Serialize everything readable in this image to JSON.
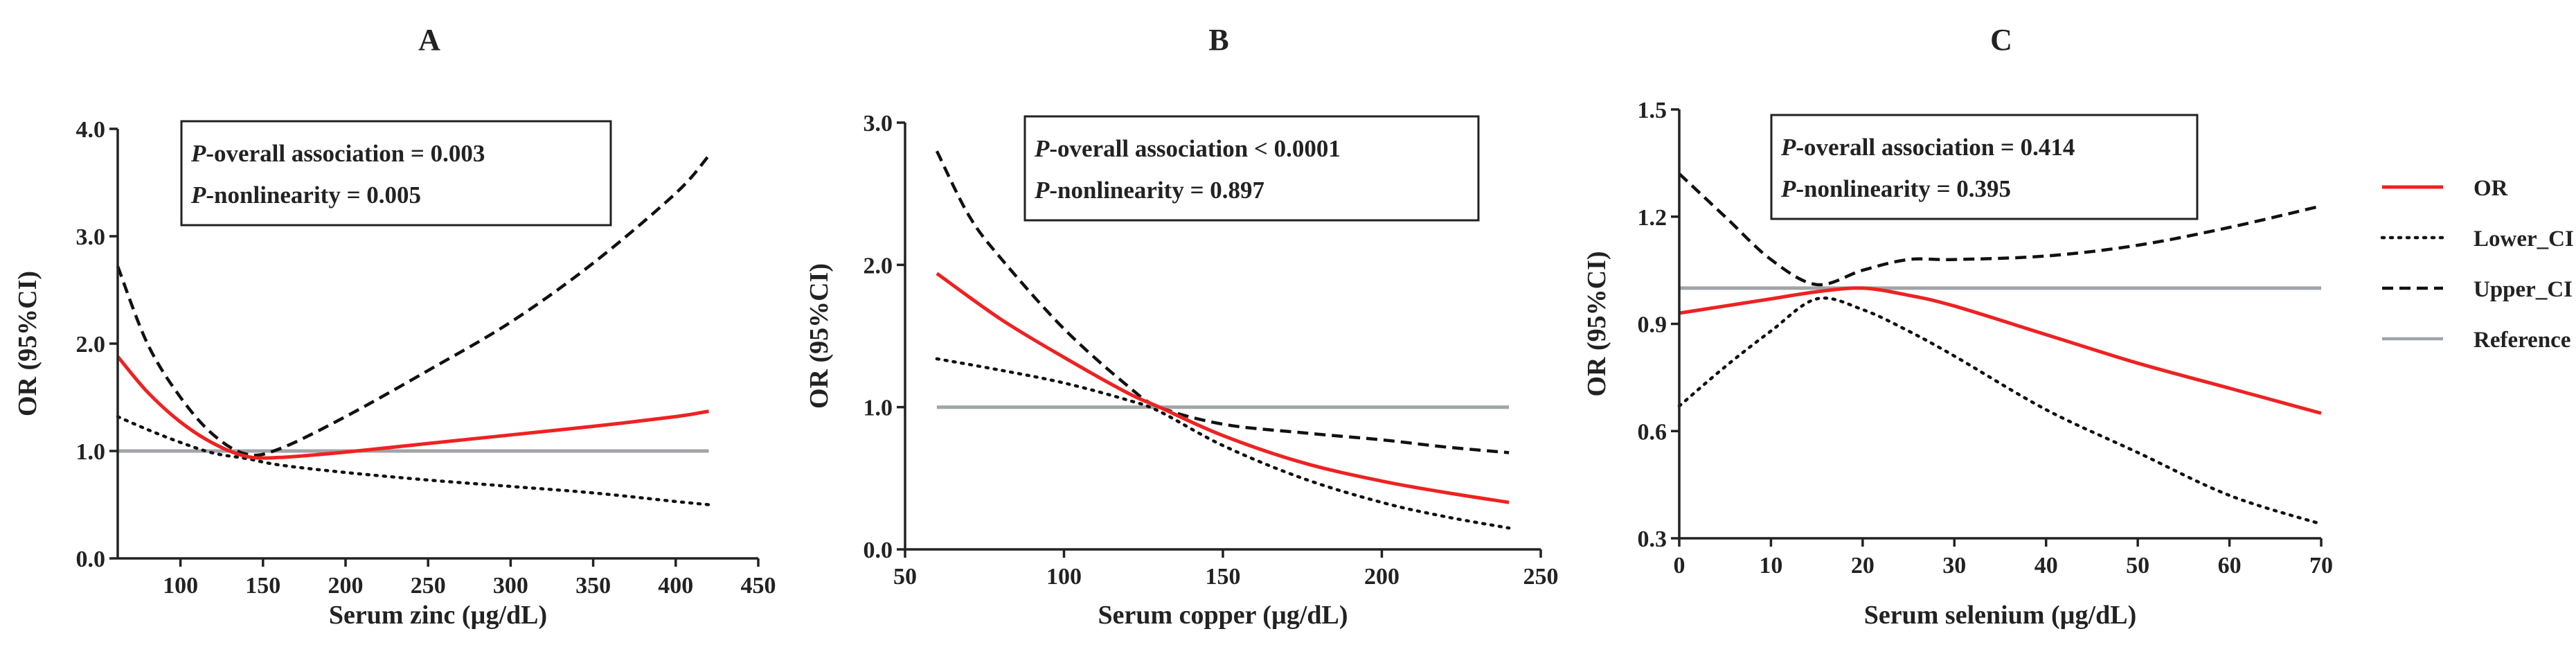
{
  "colors": {
    "or": "#ee2222",
    "ci": "#111111",
    "reference": "#a0a4a8",
    "axis": "#222222",
    "text": "#222222"
  },
  "legend": {
    "entries": [
      {
        "label": "OR",
        "series": "OR"
      },
      {
        "label": "Lower_CI",
        "series": "Lower_CI"
      },
      {
        "label": "Upper_CI",
        "series": "Upper_CI"
      },
      {
        "label": "Reference",
        "series": "Reference"
      }
    ]
  },
  "chart_data": [
    {
      "type": "line",
      "panel": "A",
      "xlabel": "Serum zinc (µg/dL)",
      "ylabel": "OR (95%CI)",
      "xlim": [
        62,
        450
      ],
      "ylim": [
        0,
        4.0
      ],
      "xticks": [
        100,
        150,
        200,
        250,
        300,
        350,
        400,
        450
      ],
      "xtick_labels": [
        "100",
        "150",
        "200",
        "250",
        "300",
        "350",
        "400",
        "450"
      ],
      "yticks": [
        0,
        1,
        2,
        3,
        4
      ],
      "ytick_labels": [
        "0.0",
        "1.0",
        "2.0",
        "3.0",
        "4.0"
      ],
      "annotation": {
        "line1_prefix": "P",
        "line1_rest": "-overall association = 0.003",
        "line2_prefix": "P",
        "line2_rest": "-nonlinearity = 0.005"
      },
      "series": [
        {
          "name": "OR",
          "style": "solid",
          "x": [
            62,
            80,
            100,
            120,
            140,
            160,
            200,
            250,
            300,
            350,
            400,
            420
          ],
          "y": [
            1.88,
            1.55,
            1.27,
            1.07,
            0.95,
            0.94,
            0.99,
            1.07,
            1.15,
            1.23,
            1.32,
            1.37
          ]
        },
        {
          "name": "Lower_CI",
          "style": "dotted",
          "x": [
            62,
            80,
            100,
            120,
            140,
            160,
            200,
            250,
            300,
            350,
            400,
            420
          ],
          "y": [
            1.32,
            1.2,
            1.08,
            0.98,
            0.93,
            0.87,
            0.8,
            0.73,
            0.67,
            0.61,
            0.53,
            0.5
          ]
        },
        {
          "name": "Upper_CI",
          "style": "dashed",
          "x": [
            62,
            80,
            100,
            120,
            140,
            160,
            200,
            250,
            300,
            350,
            400,
            420
          ],
          "y": [
            2.72,
            2.0,
            1.5,
            1.15,
            0.97,
            1.02,
            1.32,
            1.75,
            2.2,
            2.75,
            3.4,
            3.75
          ]
        },
        {
          "name": "Reference",
          "style": "solid",
          "x": [
            62,
            420
          ],
          "y": [
            1.0,
            1.0
          ]
        }
      ]
    },
    {
      "type": "line",
      "panel": "B",
      "xlabel": "Serum copper (µg/dL)",
      "ylabel": "OR (95%CI)",
      "xlim": [
        50,
        250
      ],
      "ylim": [
        0,
        3.0
      ],
      "xticks": [
        50,
        100,
        150,
        200,
        250
      ],
      "xtick_labels": [
        "50",
        "100",
        "150",
        "200",
        "250"
      ],
      "yticks": [
        0,
        1,
        2,
        3
      ],
      "ytick_labels": [
        "0.0",
        "1.0",
        "2.0",
        "3.0"
      ],
      "annotation": {
        "line1_prefix": "P",
        "line1_rest": "-overall association < 0.0001",
        "line2_prefix": "P",
        "line2_rest": "-nonlinearity = 0.897"
      },
      "series": [
        {
          "name": "OR",
          "style": "solid",
          "x": [
            60,
            80,
            100,
            120,
            130,
            150,
            175,
            200,
            220,
            240
          ],
          "y": [
            1.94,
            1.62,
            1.35,
            1.1,
            1.0,
            0.8,
            0.61,
            0.48,
            0.4,
            0.33
          ]
        },
        {
          "name": "Lower_CI",
          "style": "dotted",
          "x": [
            60,
            80,
            100,
            120,
            130,
            150,
            175,
            200,
            220,
            240
          ],
          "y": [
            1.34,
            1.26,
            1.17,
            1.05,
            0.97,
            0.73,
            0.5,
            0.33,
            0.23,
            0.15
          ]
        },
        {
          "name": "Upper_CI",
          "style": "dashed",
          "x": [
            60,
            70,
            80,
            100,
            120,
            130,
            150,
            175,
            200,
            220,
            240
          ],
          "y": [
            2.8,
            2.35,
            2.05,
            1.55,
            1.15,
            1.0,
            0.88,
            0.82,
            0.77,
            0.72,
            0.68
          ]
        },
        {
          "name": "Reference",
          "style": "solid",
          "x": [
            60,
            240
          ],
          "y": [
            1.0,
            1.0
          ]
        }
      ]
    },
    {
      "type": "line",
      "panel": "C",
      "xlabel": "Serum selenium (µg/dL)",
      "ylabel": "OR (95%CI)",
      "xlim": [
        0,
        70
      ],
      "ylim": [
        0.3,
        1.5
      ],
      "xticks": [
        0,
        10,
        20,
        30,
        40,
        50,
        60,
        70
      ],
      "xtick_labels": [
        "0",
        "10",
        "20",
        "30",
        "40",
        "50",
        "60",
        "70"
      ],
      "yticks": [
        0.3,
        0.6,
        0.9,
        1.2,
        1.5
      ],
      "ytick_labels": [
        "0.3",
        "0.6",
        "0.9",
        "1.2",
        "1.5"
      ],
      "annotation": {
        "line1_prefix": "P",
        "line1_rest": "-overall association = 0.414",
        "line2_prefix": "P",
        "line2_rest": "-nonlinearity = 0.395"
      },
      "series": [
        {
          "name": "OR",
          "style": "solid",
          "x": [
            0,
            5,
            10,
            15,
            20,
            25,
            30,
            40,
            50,
            60,
            70
          ],
          "y": [
            0.93,
            0.95,
            0.97,
            0.99,
            1.0,
            0.98,
            0.95,
            0.87,
            0.79,
            0.72,
            0.65
          ]
        },
        {
          "name": "Lower_CI",
          "style": "dotted",
          "x": [
            0,
            5,
            10,
            15,
            20,
            25,
            30,
            40,
            50,
            60,
            70
          ],
          "y": [
            0.67,
            0.78,
            0.88,
            0.97,
            0.94,
            0.88,
            0.81,
            0.66,
            0.54,
            0.42,
            0.34
          ]
        },
        {
          "name": "Upper_CI",
          "style": "dashed",
          "x": [
            0,
            5,
            10,
            15,
            20,
            25,
            30,
            40,
            50,
            60,
            70
          ],
          "y": [
            1.32,
            1.2,
            1.08,
            1.01,
            1.05,
            1.08,
            1.08,
            1.09,
            1.12,
            1.17,
            1.23
          ]
        },
        {
          "name": "Reference",
          "style": "solid",
          "x": [
            0,
            70
          ],
          "y": [
            1.0,
            1.0
          ]
        }
      ]
    }
  ]
}
